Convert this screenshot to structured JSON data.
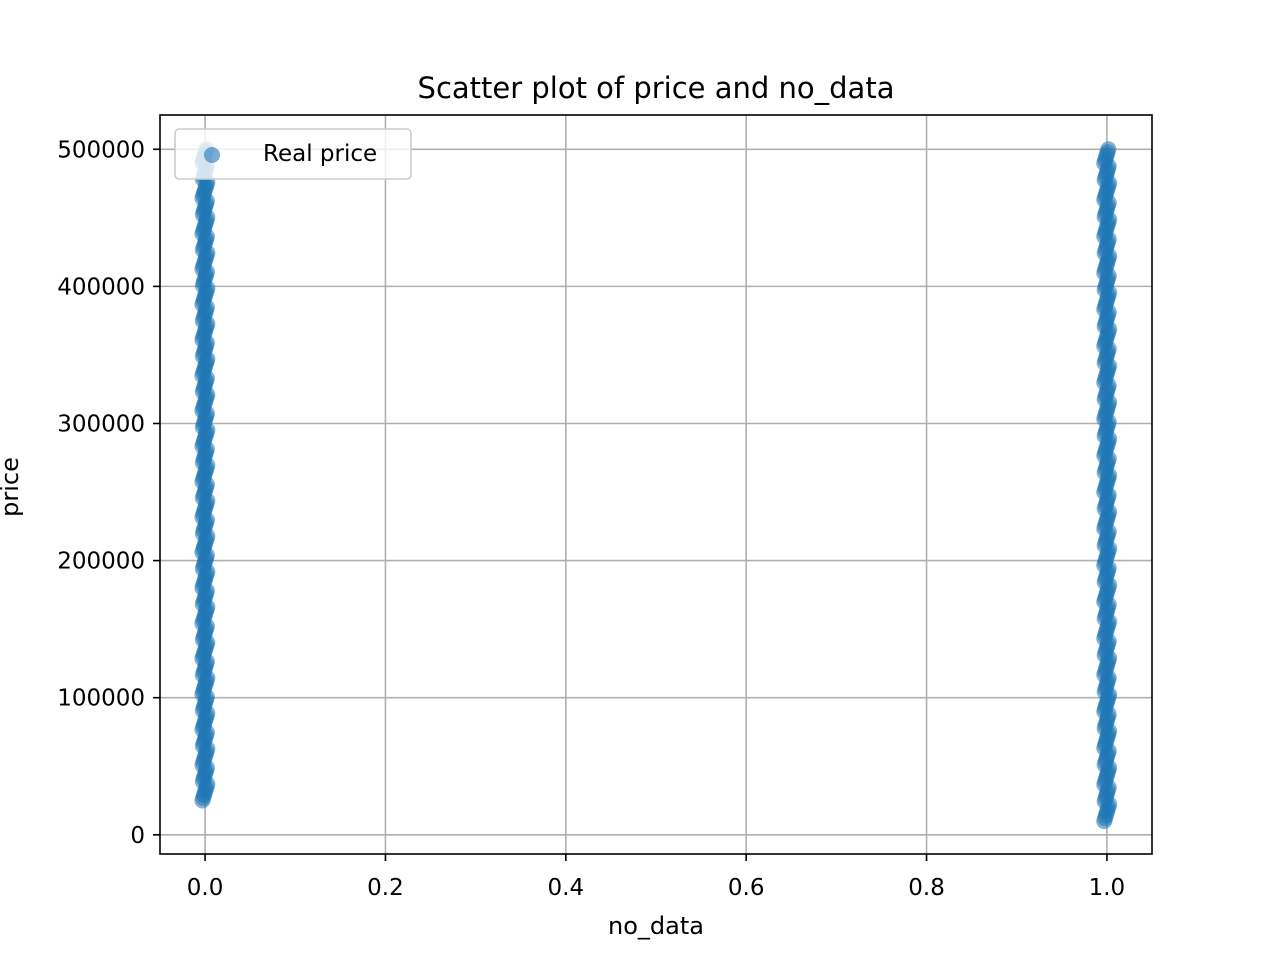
{
  "chart_data": {
    "type": "scatter",
    "title": "Scatter plot of price and no_data",
    "xlabel": "no_data",
    "ylabel": "price",
    "xlim": [
      -0.05,
      1.05
    ],
    "ylim": [
      -14000,
      525000
    ],
    "x_ticks": [
      "0.0",
      "0.2",
      "0.4",
      "0.6",
      "0.8",
      "1.0"
    ],
    "y_ticks": [
      "0",
      "100000",
      "200000",
      "300000",
      "400000",
      "500000"
    ],
    "grid": true,
    "legend_position": "top-left",
    "series": [
      {
        "name": "Real price",
        "color": "#1f77b4",
        "groups": [
          {
            "x": 0,
            "y_min": 25000,
            "y_max": 500000
          },
          {
            "x": 1,
            "y_min": 10000,
            "y_max": 500000
          }
        ]
      }
    ]
  }
}
